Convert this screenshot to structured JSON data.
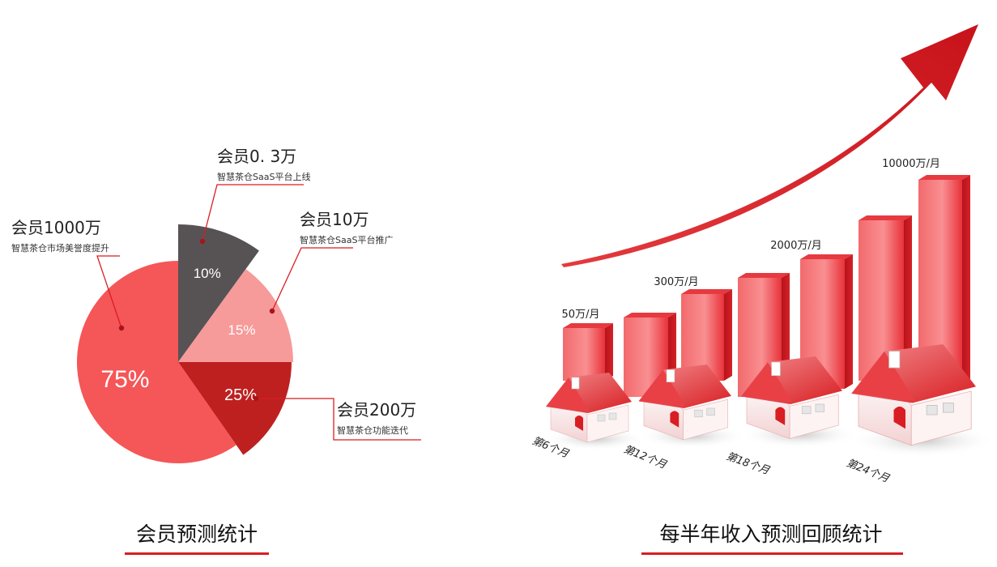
{
  "chart_data": [
    {
      "type": "pie",
      "title": "会员预测统计",
      "slices": [
        {
          "label": "10%",
          "value": 10,
          "color": "#575355",
          "title": "会员0. 3万",
          "subtitle": "智慧茶仓SaaS平台上线"
        },
        {
          "label": "15%",
          "value": 15,
          "color": "#f79a9a",
          "title": "会员10万",
          "subtitle": "智慧茶仓SaaS平台推广"
        },
        {
          "label": "25%",
          "value": 25,
          "color": "#be2020",
          "title": "会员200万",
          "subtitle": "智慧茶仓功能迭代"
        },
        {
          "label": "75%",
          "value": 75,
          "color": "#f55657",
          "title": "会员1000万",
          "subtitle": "智慧茶仓市场美誉度提升"
        }
      ]
    },
    {
      "type": "bar",
      "title": "每半年收入预测回顾统计",
      "categories": [
        "第6个月",
        "第12个月",
        "第18个月",
        "第24个月"
      ],
      "series": [
        {
          "values": [
            50,
            300,
            2000,
            10000
          ]
        }
      ],
      "value_labels": [
        "50万/月",
        "300万/月",
        "2000万/月",
        "10000万/月"
      ],
      "colors": {
        "bar": "#e8323a",
        "bar_light": "#f78a8c",
        "arrow": "#d41a1f",
        "underline": "#d81e22"
      }
    }
  ]
}
